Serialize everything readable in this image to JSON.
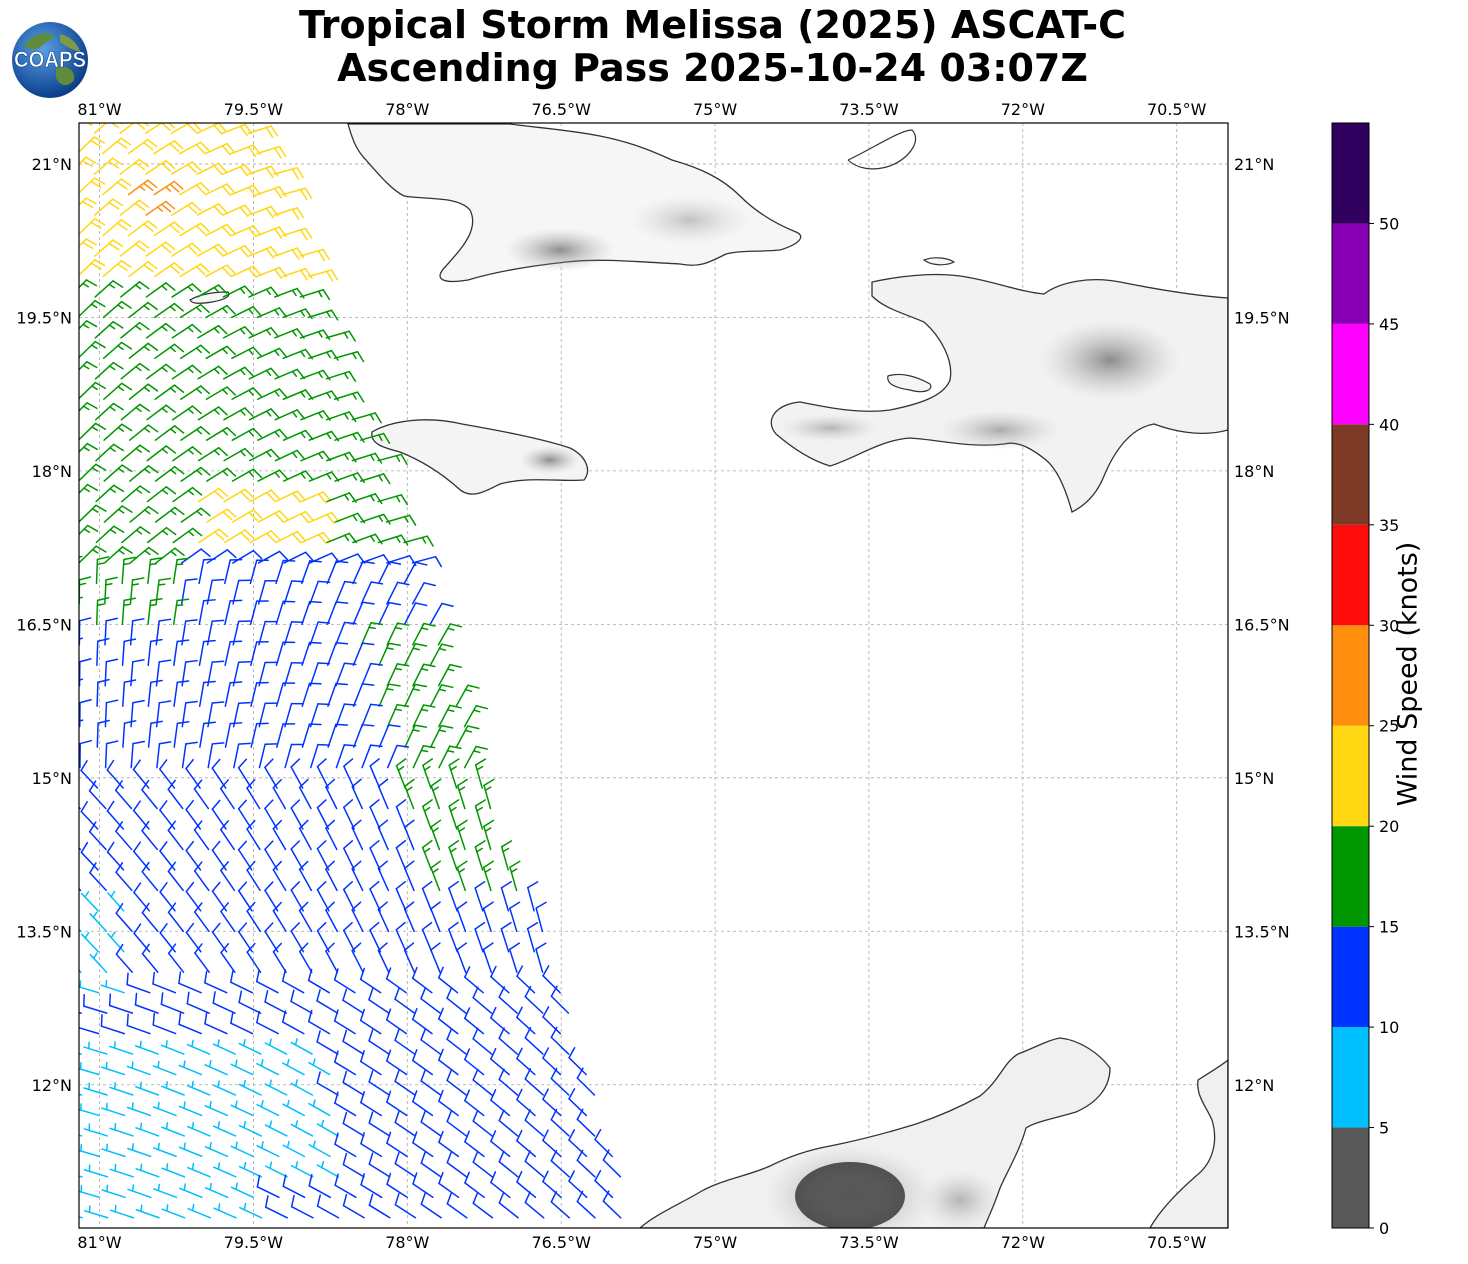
{
  "title": {
    "line1": "Tropical Storm Melissa (2025) ASCAT-C",
    "line2": "Ascending Pass 2025-10-24 03:07Z"
  },
  "logo": {
    "text": "COAPS",
    "icon": "earth-globe-icon"
  },
  "map": {
    "lon_labels": [
      "81°W",
      "79.5°W",
      "78°W",
      "76.5°W",
      "75°W",
      "73.5°W",
      "72°W",
      "70.5°W"
    ],
    "lat_labels": [
      "21°N",
      "19.5°N",
      "18°N",
      "16.5°N",
      "15°N",
      "13.5°N",
      "12°N"
    ],
    "lon_values": [
      -81,
      -79.5,
      -78,
      -76.5,
      -75,
      -73.5,
      -72,
      -70.5
    ],
    "lat_values": [
      21,
      19.5,
      18,
      16.5,
      15,
      13.5,
      12
    ],
    "extent": {
      "lon_min": -81.2,
      "lon_max": -70.0,
      "lat_min": 10.6,
      "lat_max": 21.4
    },
    "gridlines": true,
    "coastline_color": "#333333",
    "terrain": "grayscale"
  },
  "colorbar": {
    "label": "Wind Speed (knots)",
    "ticks": [
      "0",
      "5",
      "10",
      "15",
      "20",
      "25",
      "30",
      "35",
      "40",
      "45",
      "50"
    ],
    "bins": [
      {
        "min": 0,
        "max": 5,
        "color": "#595959"
      },
      {
        "min": 5,
        "max": 10,
        "color": "#00bfff"
      },
      {
        "min": 10,
        "max": 15,
        "color": "#0033ff"
      },
      {
        "min": 15,
        "max": 20,
        "color": "#009600"
      },
      {
        "min": 20,
        "max": 25,
        "color": "#ffd712"
      },
      {
        "min": 25,
        "max": 30,
        "color": "#ff8e0f"
      },
      {
        "min": 30,
        "max": 35,
        "color": "#ff0d0d"
      },
      {
        "min": 35,
        "max": 40,
        "color": "#7d3b27"
      },
      {
        "min": 40,
        "max": 45,
        "color": "#ff00ff"
      },
      {
        "min": 45,
        "max": 50,
        "color": "#8700b5"
      },
      {
        "min": 50,
        "max": 55,
        "color": "#2f005d"
      }
    ]
  }
}
